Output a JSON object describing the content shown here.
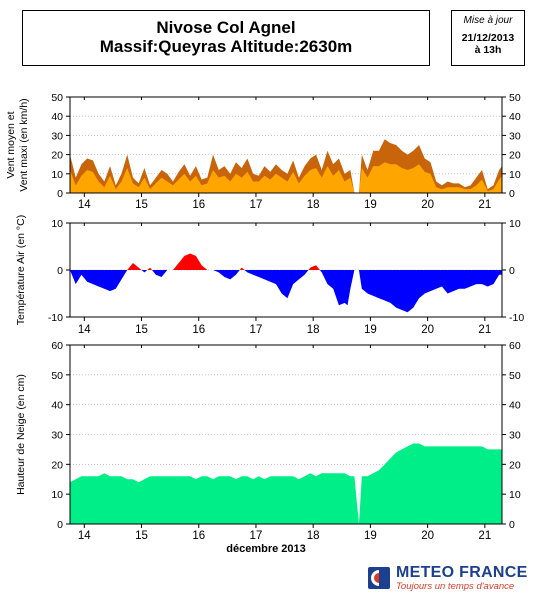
{
  "header": {
    "title_line1": "Nivose Col Agnel",
    "title_line2": "Massif:Queyras Altitude:2630m",
    "update_label": "Mise à jour",
    "update_date": "21/12/2013",
    "update_time": "à 13h"
  },
  "footer": {
    "brand": "METEO FRANCE",
    "tagline": "Toujours un temps d'avance"
  },
  "colors": {
    "wind_max": "#c8650a",
    "wind_mean": "#ffa500",
    "temp_positive": "#ff0000",
    "temp_negative": "#0000ff",
    "snow": "#00ee88",
    "grid": "#aaaaaa",
    "brand_blue": "#1d3f8f",
    "brand_red": "#d83a2a"
  },
  "chart_data": [
    {
      "type": "area",
      "ylabel_line1": "Vent moyen et",
      "ylabel_line2": "Vent maxi (en km/h)",
      "xlabel": "",
      "x_range": [
        13.75,
        21.3
      ],
      "ylim": [
        0,
        50
      ],
      "yticks": [
        0,
        10,
        20,
        30,
        40,
        50
      ],
      "xtick_labels": [
        "14",
        "15",
        "16",
        "17",
        "18",
        "19",
        "20",
        "21"
      ],
      "xticks": [
        14,
        15,
        16,
        17,
        18,
        19,
        20,
        21
      ],
      "grid": true,
      "series": [
        {
          "key": "wind_max",
          "x": [
            13.75,
            13.85,
            13.95,
            14.05,
            14.15,
            14.25,
            14.35,
            14.45,
            14.55,
            14.65,
            14.75,
            14.85,
            14.95,
            15.05,
            15.15,
            15.25,
            15.35,
            15.45,
            15.55,
            15.65,
            15.75,
            15.85,
            15.95,
            16.05,
            16.15,
            16.25,
            16.35,
            16.45,
            16.55,
            16.65,
            16.75,
            16.85,
            16.95,
            17.05,
            17.15,
            17.25,
            17.35,
            17.45,
            17.55,
            17.65,
            17.75,
            17.85,
            17.95,
            18.05,
            18.15,
            18.25,
            18.35,
            18.45,
            18.55,
            18.65,
            18.72,
            18.8,
            18.85,
            18.95,
            19.05,
            19.15,
            19.25,
            19.35,
            19.45,
            19.55,
            19.65,
            19.75,
            19.85,
            19.95,
            20.05,
            20.15,
            20.25,
            20.35,
            20.45,
            20.55,
            20.65,
            20.75,
            20.85,
            20.95,
            21.05,
            21.15,
            21.25,
            21.3
          ],
          "values": [
            20,
            8,
            15,
            18,
            17,
            10,
            6,
            14,
            4,
            10,
            20,
            8,
            5,
            13,
            4,
            8,
            12,
            10,
            6,
            11,
            15,
            9,
            14,
            7,
            8,
            20,
            12,
            14,
            10,
            16,
            13,
            18,
            10,
            9,
            14,
            11,
            15,
            12,
            10,
            17,
            8,
            14,
            18,
            20,
            12,
            22,
            15,
            18,
            10,
            12,
            0,
            0,
            20,
            12,
            22,
            22,
            28,
            26,
            25,
            22,
            20,
            22,
            25,
            18,
            16,
            6,
            4,
            6,
            5,
            5,
            3,
            4,
            8,
            12,
            2,
            4,
            12,
            14
          ]
        },
        {
          "key": "wind_mean",
          "x": [
            13.75,
            13.85,
            13.95,
            14.05,
            14.15,
            14.25,
            14.35,
            14.45,
            14.55,
            14.65,
            14.75,
            14.85,
            14.95,
            15.05,
            15.15,
            15.25,
            15.35,
            15.45,
            15.55,
            15.65,
            15.75,
            15.85,
            15.95,
            16.05,
            16.15,
            16.25,
            16.35,
            16.45,
            16.55,
            16.65,
            16.75,
            16.85,
            16.95,
            17.05,
            17.15,
            17.25,
            17.35,
            17.45,
            17.55,
            17.65,
            17.75,
            17.85,
            17.95,
            18.05,
            18.15,
            18.25,
            18.35,
            18.45,
            18.55,
            18.65,
            18.72,
            18.8,
            18.85,
            18.95,
            19.05,
            19.15,
            19.25,
            19.35,
            19.45,
            19.55,
            19.65,
            19.75,
            19.85,
            19.95,
            20.05,
            20.15,
            20.25,
            20.35,
            20.45,
            20.55,
            20.65,
            20.75,
            20.85,
            20.95,
            21.05,
            21.15,
            21.25,
            21.3
          ],
          "values": [
            12,
            4,
            9,
            12,
            11,
            6,
            3,
            9,
            2,
            6,
            13,
            5,
            3,
            8,
            2,
            5,
            8,
            6,
            4,
            7,
            10,
            6,
            9,
            4,
            5,
            12,
            8,
            9,
            6,
            10,
            8,
            11,
            6,
            6,
            9,
            7,
            10,
            8,
            6,
            11,
            5,
            9,
            12,
            13,
            8,
            14,
            9,
            12,
            6,
            8,
            0,
            0,
            13,
            8,
            14,
            14,
            16,
            15,
            15,
            13,
            12,
            13,
            15,
            11,
            10,
            3,
            2,
            3,
            3,
            3,
            2,
            2,
            4,
            7,
            1,
            2,
            7,
            9
          ]
        }
      ]
    },
    {
      "type": "area",
      "ylabel": "Température Air (en °C)",
      "xlabel": "",
      "x_range": [
        13.75,
        21.3
      ],
      "ylim": [
        -10,
        10
      ],
      "yticks": [
        -10,
        0,
        10
      ],
      "xtick_labels": [
        "14",
        "15",
        "16",
        "17",
        "18",
        "19",
        "20",
        "21"
      ],
      "xticks": [
        14,
        15,
        16,
        17,
        18,
        19,
        20,
        21
      ],
      "grid": true,
      "series": [
        {
          "key": "temperature",
          "x": [
            13.75,
            13.85,
            13.95,
            14.05,
            14.15,
            14.25,
            14.35,
            14.45,
            14.55,
            14.65,
            14.75,
            14.85,
            14.95,
            15.05,
            15.15,
            15.25,
            15.35,
            15.45,
            15.55,
            15.65,
            15.75,
            15.85,
            15.95,
            16.05,
            16.15,
            16.25,
            16.35,
            16.45,
            16.55,
            16.65,
            16.75,
            16.85,
            16.95,
            17.05,
            17.15,
            17.25,
            17.35,
            17.45,
            17.55,
            17.65,
            17.75,
            17.85,
            17.95,
            18.05,
            18.15,
            18.25,
            18.35,
            18.45,
            18.55,
            18.6,
            18.65,
            18.72,
            18.8,
            18.85,
            18.95,
            19.05,
            19.15,
            19.25,
            19.35,
            19.45,
            19.55,
            19.65,
            19.75,
            19.85,
            19.95,
            20.05,
            20.15,
            20.25,
            20.35,
            20.45,
            20.55,
            20.65,
            20.75,
            20.85,
            20.95,
            21.05,
            21.15,
            21.25,
            21.3
          ],
          "values": [
            0,
            -3,
            -1,
            -2.5,
            -3,
            -3.5,
            -4,
            -4.5,
            -4,
            -2,
            0,
            1.5,
            0.5,
            -0.5,
            0.5,
            -1,
            -1.5,
            0,
            0,
            1.5,
            3,
            3.5,
            3,
            1,
            0,
            0,
            -0.5,
            -1.5,
            -2,
            -1,
            0.5,
            -0.5,
            -1,
            -1.5,
            -2,
            -2.5,
            -3,
            -5,
            -6,
            -3,
            -2,
            -1,
            0.5,
            1,
            -0.5,
            -3,
            -4,
            -7.5,
            -7,
            -7.5,
            -4,
            0,
            0,
            -4,
            -5,
            -5.5,
            -6,
            -6.5,
            -7,
            -8,
            -8.5,
            -9,
            -8,
            -6,
            -5,
            -4.5,
            -4,
            -3.5,
            -5,
            -4.5,
            -4,
            -4,
            -3.5,
            -3,
            -3,
            -3.5,
            -3,
            -1,
            -1
          ]
        }
      ]
    },
    {
      "type": "area",
      "ylabel": "Hauteur de Neige (en cm)",
      "xlabel": "décembre 2013",
      "x_range": [
        13.75,
        21.3
      ],
      "ylim": [
        0,
        60
      ],
      "yticks": [
        0,
        10,
        20,
        30,
        40,
        50,
        60
      ],
      "xtick_labels": [
        "14",
        "15",
        "16",
        "17",
        "18",
        "19",
        "20",
        "21"
      ],
      "xticks": [
        14,
        15,
        16,
        17,
        18,
        19,
        20,
        21
      ],
      "grid": true,
      "series": [
        {
          "key": "snow_depth",
          "x": [
            13.75,
            13.85,
            13.95,
            14.05,
            14.15,
            14.25,
            14.35,
            14.45,
            14.55,
            14.65,
            14.75,
            14.85,
            14.95,
            15.05,
            15.15,
            15.25,
            15.35,
            15.45,
            15.55,
            15.65,
            15.75,
            15.85,
            15.95,
            16.05,
            16.15,
            16.25,
            16.35,
            16.45,
            16.55,
            16.65,
            16.75,
            16.85,
            16.95,
            17.05,
            17.15,
            17.25,
            17.35,
            17.45,
            17.55,
            17.65,
            17.75,
            17.85,
            17.95,
            18.05,
            18.15,
            18.25,
            18.35,
            18.45,
            18.55,
            18.65,
            18.72,
            18.8,
            18.85,
            18.95,
            19.05,
            19.15,
            19.25,
            19.35,
            19.45,
            19.55,
            19.65,
            19.75,
            19.85,
            19.95,
            20.05,
            20.15,
            20.25,
            20.35,
            20.45,
            20.55,
            20.65,
            20.75,
            20.85,
            20.95,
            21.05,
            21.15,
            21.25,
            21.3
          ],
          "values": [
            14,
            15,
            16,
            16,
            16,
            16,
            17,
            16,
            16,
            16,
            15,
            15,
            14,
            15,
            16,
            16,
            16,
            16,
            16,
            16,
            16,
            16,
            15,
            16,
            16,
            15,
            16,
            16,
            16,
            15,
            16,
            16,
            15,
            16,
            15,
            16,
            16,
            16,
            16,
            16,
            15,
            16,
            17,
            16,
            17,
            17,
            17,
            17,
            17,
            16,
            16,
            0,
            16,
            16,
            17,
            18,
            20,
            22,
            24,
            25,
            26,
            27,
            27,
            26,
            26,
            26,
            26,
            26,
            26,
            26,
            26,
            26,
            26,
            26,
            25,
            25,
            25,
            25
          ]
        }
      ]
    }
  ]
}
